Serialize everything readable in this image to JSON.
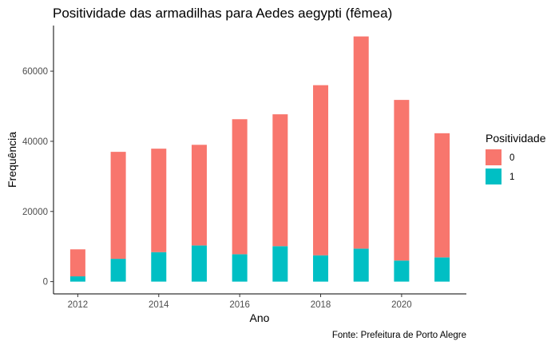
{
  "chart_data": {
    "type": "bar",
    "stacked": true,
    "title": "Positividade das armadilhas para Aedes aegypti (fêmea)",
    "xlabel": "Ano",
    "ylabel": "Frequência",
    "caption": "Fonte: Prefeitura de Porto Alegre",
    "x": [
      2012,
      2013,
      2014,
      2015,
      2016,
      2017,
      2018,
      2019,
      2020,
      2021
    ],
    "xlim": [
      2011.4,
      2021.6
    ],
    "xticks": [
      2012,
      2014,
      2016,
      2018,
      2020
    ],
    "xtick_labels": [
      "2012",
      "2014",
      "2016",
      "2018",
      "2020"
    ],
    "ylim": [
      -3500,
      73000
    ],
    "yticks": [
      0,
      20000,
      40000,
      60000
    ],
    "ytick_labels": [
      "0",
      "20000",
      "40000",
      "60000"
    ],
    "grid": false,
    "legend": {
      "title": "Positividade",
      "position": "right"
    },
    "series": [
      {
        "name": "0",
        "color": "#F8766D",
        "values": [
          7700,
          30500,
          29500,
          28700,
          38500,
          37600,
          48500,
          60500,
          45800,
          35400
        ]
      },
      {
        "name": "1",
        "color": "#00BFC4",
        "values": [
          1500,
          6500,
          8400,
          10300,
          7800,
          10100,
          7500,
          9400,
          6000,
          6900
        ]
      }
    ]
  }
}
